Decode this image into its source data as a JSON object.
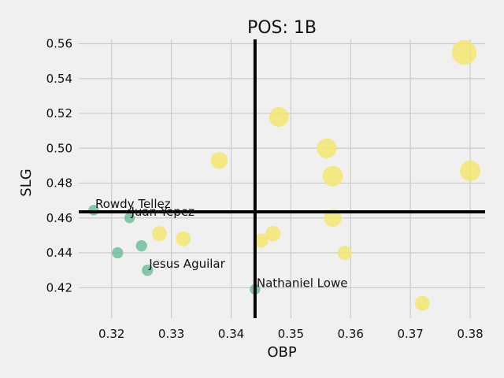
{
  "chart_data": {
    "type": "scatter",
    "title": "POS: 1B",
    "xlabel": "OBP",
    "ylabel": "SLG",
    "xlim": [
      0.3145,
      0.3825
    ],
    "ylim": [
      0.4025,
      0.5625
    ],
    "xticks": [
      "0.32",
      "0.33",
      "0.34",
      "0.35",
      "0.36",
      "0.37",
      "0.38"
    ],
    "yticks": [
      "0.42",
      "0.44",
      "0.46",
      "0.48",
      "0.50",
      "0.52",
      "0.54",
      "0.56"
    ],
    "grid": true,
    "reference_lines": {
      "x": 0.344,
      "y": 0.4635
    },
    "colors": {
      "low": "#5fba94",
      "high": "#f5e66e",
      "line": "#000000",
      "grid": "#cbcbcb"
    },
    "points": [
      {
        "x": 0.379,
        "y": 0.555,
        "size": 2.6,
        "tier": "high"
      },
      {
        "x": 0.348,
        "y": 0.518,
        "size": 1.9,
        "tier": "high"
      },
      {
        "x": 0.356,
        "y": 0.5,
        "size": 1.9,
        "tier": "high"
      },
      {
        "x": 0.338,
        "y": 0.493,
        "size": 1.5,
        "tier": "high"
      },
      {
        "x": 0.38,
        "y": 0.487,
        "size": 2.0,
        "tier": "high"
      },
      {
        "x": 0.357,
        "y": 0.484,
        "size": 2.0,
        "tier": "high"
      },
      {
        "x": 0.357,
        "y": 0.46,
        "size": 1.6,
        "tier": "high"
      },
      {
        "x": 0.347,
        "y": 0.451,
        "size": 1.3,
        "tier": "high"
      },
      {
        "x": 0.328,
        "y": 0.451,
        "size": 1.2,
        "tier": "high"
      },
      {
        "x": 0.332,
        "y": 0.448,
        "size": 1.2,
        "tier": "high"
      },
      {
        "x": 0.345,
        "y": 0.447,
        "size": 1.1,
        "tier": "high"
      },
      {
        "x": 0.359,
        "y": 0.44,
        "size": 1.1,
        "tier": "high"
      },
      {
        "x": 0.372,
        "y": 0.411,
        "size": 1.2,
        "tier": "high"
      },
      {
        "x": 0.317,
        "y": 0.4645,
        "size": 0.6,
        "tier": "low",
        "label": "Rowdy Tellez"
      },
      {
        "x": 0.323,
        "y": 0.46,
        "size": 0.6,
        "tier": "low",
        "label": "Juan Yepez"
      },
      {
        "x": 0.325,
        "y": 0.444,
        "size": 0.7,
        "tier": "low"
      },
      {
        "x": 0.321,
        "y": 0.44,
        "size": 0.7,
        "tier": "low"
      },
      {
        "x": 0.326,
        "y": 0.43,
        "size": 0.7,
        "tier": "low",
        "label": "Jesus Aguilar"
      },
      {
        "x": 0.344,
        "y": 0.419,
        "size": 0.6,
        "tier": "low",
        "label": "Nathaniel Lowe"
      }
    ]
  }
}
